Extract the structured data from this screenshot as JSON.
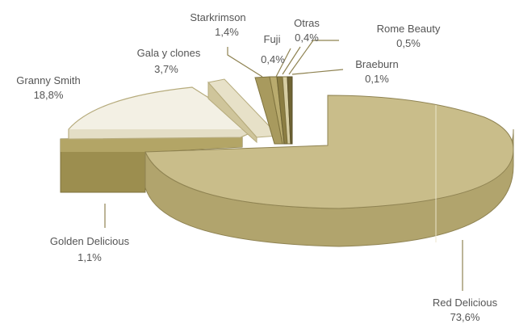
{
  "chart_data": {
    "type": "pie",
    "title": "",
    "slices": [
      {
        "name": "Red Delicious",
        "percent_label": "73,6%",
        "value": 73.6,
        "color": "#c2b57e"
      },
      {
        "name": "Golden Delicious",
        "percent_label": "1,1%",
        "value": 1.1,
        "color": "#9c8e4f"
      },
      {
        "name": "Granny Smith",
        "percent_label": "18,8%",
        "value": 18.8,
        "color": "#f2efe2"
      },
      {
        "name": "Gala y clones",
        "percent_label": "3,7%",
        "value": 3.7,
        "color": "#e2dcc0"
      },
      {
        "name": "Starkrimson",
        "percent_label": "1,4%",
        "value": 1.4,
        "color": "#a89a5e"
      },
      {
        "name": "Fuji",
        "percent_label": "0,4%",
        "value": 0.4,
        "color": "#b9ab6e"
      },
      {
        "name": "Otras",
        "percent_label": "0,4%",
        "value": 0.4,
        "color": "#8c7e43"
      },
      {
        "name": "Rome Beauty",
        "percent_label": "0,5%",
        "value": 0.5,
        "color": "#d6cda2"
      },
      {
        "name": "Braeburn",
        "percent_label": "0,1%",
        "value": 0.1,
        "color": "#6f6434"
      }
    ],
    "style": "3d-exploded"
  }
}
